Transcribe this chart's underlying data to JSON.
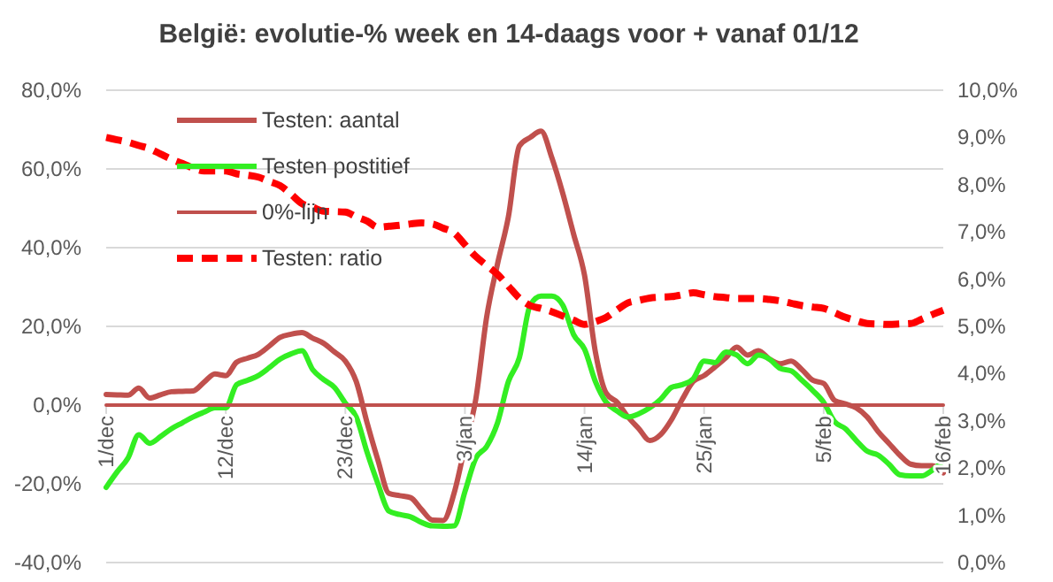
{
  "chart_data": {
    "type": "line",
    "title": "België: evolutie-%  week en 14-daags voor + vanaf 01/12",
    "categories": [
      "1/dec",
      null,
      null,
      null,
      null,
      null,
      null,
      null,
      null,
      null,
      null,
      "12/dec",
      null,
      null,
      null,
      null,
      null,
      null,
      null,
      null,
      null,
      null,
      "23/dec",
      null,
      null,
      null,
      null,
      null,
      null,
      null,
      null,
      null,
      null,
      "3/jan",
      null,
      null,
      null,
      null,
      null,
      null,
      null,
      null,
      null,
      null,
      "14/jan",
      null,
      null,
      null,
      null,
      null,
      null,
      null,
      null,
      null,
      null,
      "25/jan",
      null,
      null,
      null,
      null,
      null,
      null,
      null,
      null,
      null,
      null,
      "5/feb",
      null,
      null,
      null,
      null,
      null,
      null,
      null,
      null,
      null,
      null,
      "16/feb"
    ],
    "ylim": [
      -40,
      80
    ],
    "yticks": [
      {
        "value": -40,
        "label": "-40,0%"
      },
      {
        "value": -20,
        "label": "-20,0%"
      },
      {
        "value": 0,
        "label": "0,0%"
      },
      {
        "value": 20,
        "label": "20,0%"
      },
      {
        "value": 40,
        "label": "40,0%"
      },
      {
        "value": 60,
        "label": "60,0%"
      },
      {
        "value": 80,
        "label": "80,0%"
      }
    ],
    "y2lim": [
      0,
      10
    ],
    "y2ticks": [
      {
        "value": 0,
        "label": "0,0%"
      },
      {
        "value": 1,
        "label": "1,0%"
      },
      {
        "value": 2,
        "label": "2,0%"
      },
      {
        "value": 3,
        "label": "3,0%"
      },
      {
        "value": 4,
        "label": "4,0%"
      },
      {
        "value": 5,
        "label": "5,0%"
      },
      {
        "value": 6,
        "label": "6,0%"
      },
      {
        "value": 7,
        "label": "7,0%"
      },
      {
        "value": 8,
        "label": "8,0%"
      },
      {
        "value": 9,
        "label": "9,0%"
      },
      {
        "value": 10,
        "label": "10,0%"
      }
    ],
    "grid": "y",
    "legend": "top left",
    "marker": "none",
    "series": [
      {
        "name": "Testen: aantal",
        "color": "#c0504d",
        "line_style": "solid",
        "values": [
          2.7,
          2.6,
          2.5,
          4.3,
          1.8,
          2.6,
          3.4,
          3.5,
          3.6,
          5.8,
          7.9,
          7.5,
          10.9,
          11.9,
          12.9,
          15,
          17.2,
          18,
          18.4,
          17,
          15.7,
          13.5,
          11.2,
          6.0,
          -4.5,
          -14,
          -22.4,
          -23,
          -23.5,
          -26.5,
          -29.2,
          -29.3,
          -22.4,
          -10.5,
          1.5,
          22.4,
          35.9,
          47.9,
          65.8,
          68,
          69.6,
          62.8,
          53.8,
          43.4,
          33,
          13.5,
          3,
          0.7,
          -3,
          -6,
          -9,
          -7.5,
          -3.7,
          1.5,
          6,
          7.5,
          9.7,
          12,
          14.7,
          12.7,
          13.8,
          11.7,
          10.5,
          11.2,
          9,
          6.3,
          5.5,
          1.2,
          0.3,
          -0.7,
          -3,
          -6.7,
          -9.7,
          -12.7,
          -15,
          -15.4,
          -15.4,
          -17.2
        ]
      },
      {
        "name": "Testen postitief",
        "color": "#33ee22",
        "line_style": "solid",
        "values": [
          -20.9,
          -17,
          -13.5,
          -7.5,
          -9.7,
          -8,
          -6,
          -4.5,
          -3,
          -1.8,
          -0.7,
          -0.7,
          5.2,
          6.3,
          7.5,
          9.5,
          11.7,
          13,
          13.8,
          9,
          6.5,
          4.5,
          0.5,
          -3,
          -12,
          -20,
          -26.9,
          -27.8,
          -28.4,
          -29.8,
          -30.7,
          -30.8,
          -30.7,
          -22,
          -13.5,
          -10.5,
          -4.5,
          6,
          12,
          25.4,
          27.7,
          27.7,
          25.4,
          17.9,
          14.2,
          6,
          0.7,
          -1.5,
          -3,
          -2.2,
          -0.7,
          1.5,
          4.5,
          5.2,
          6.7,
          11.2,
          10.8,
          13.5,
          12.7,
          10.5,
          12.7,
          11.7,
          9.3,
          8.7,
          6.3,
          3.7,
          0.7,
          -4.2,
          -6,
          -9,
          -11.7,
          -12.7,
          -15,
          -17.7,
          -18,
          -18,
          -16.5,
          -14.2
        ]
      },
      {
        "name": "0%-lijn",
        "color": "#c0504d",
        "line_style": "solid",
        "values": [
          0,
          0,
          0,
          0,
          0,
          0,
          0,
          0,
          0,
          0,
          0,
          0,
          0,
          0,
          0,
          0,
          0,
          0,
          0,
          0,
          0,
          0,
          0,
          0,
          0,
          0,
          0,
          0,
          0,
          0,
          0,
          0,
          0,
          0,
          0,
          0,
          0,
          0,
          0,
          0,
          0,
          0,
          0,
          0,
          0,
          0,
          0,
          0,
          0,
          0,
          0,
          0,
          0,
          0,
          0,
          0,
          0,
          0,
          0,
          0,
          0,
          0,
          0,
          0,
          0,
          0,
          0,
          0,
          0,
          0,
          0,
          0,
          0,
          0,
          0,
          0,
          0,
          0
        ]
      },
      {
        "name": "Testen: ratio",
        "color": "#ff0000",
        "line_style": "dashed",
        "axis": "y2",
        "values": [
          9.0,
          8.95,
          8.9,
          8.83,
          8.76,
          8.65,
          8.54,
          8.45,
          8.35,
          8.29,
          8.29,
          8.29,
          8.23,
          8.2,
          8.16,
          8.07,
          7.98,
          7.8,
          7.6,
          7.52,
          7.44,
          7.43,
          7.42,
          7.32,
          7.23,
          7.1,
          7.12,
          7.14,
          7.17,
          7.19,
          7.17,
          7.08,
          6.98,
          6.73,
          6.48,
          6.29,
          6.1,
          5.85,
          5.6,
          5.44,
          5.38,
          5.31,
          5.22,
          5.13,
          5.04,
          5.1,
          5.19,
          5.35,
          5.5,
          5.55,
          5.6,
          5.62,
          5.63,
          5.67,
          5.71,
          5.67,
          5.63,
          5.61,
          5.59,
          5.59,
          5.59,
          5.57,
          5.54,
          5.49,
          5.44,
          5.41,
          5.38,
          5.29,
          5.19,
          5.12,
          5.06,
          5.05,
          5.04,
          5.05,
          5.06,
          5.15,
          5.25,
          5.34
        ]
      }
    ]
  }
}
